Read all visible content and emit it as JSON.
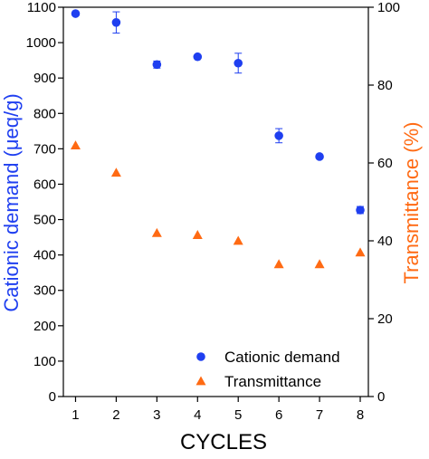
{
  "chart_data": {
    "type": "scatter",
    "title": "",
    "xlabel": "CYCLES",
    "ylabel_left": "Cationic demand (μeq/g)",
    "ylabel_right": "Transmittance (%)",
    "x": [
      1,
      2,
      3,
      4,
      5,
      6,
      7,
      8
    ],
    "xlim": [
      0.7,
      8.2
    ],
    "xticks": [
      "1",
      "2",
      "3",
      "4",
      "5",
      "6",
      "7",
      "8"
    ],
    "ylim_left": [
      0,
      1100
    ],
    "yticks_left": [
      "0",
      "100",
      "200",
      "300",
      "400",
      "500",
      "600",
      "700",
      "800",
      "900",
      "1000",
      "1100"
    ],
    "ylim_right": [
      0,
      100
    ],
    "yticks_right": [
      "0",
      "20",
      "40",
      "60",
      "80",
      "100"
    ],
    "grid": false,
    "legend_position": "bottom-right",
    "series": [
      {
        "name": "Cationic demand",
        "axis": "left",
        "marker": "circle",
        "color": "#1f3ff0",
        "values": [
          1082,
          1057,
          938,
          960,
          942,
          737,
          678,
          527
        ],
        "errors": [
          0,
          30,
          10,
          0,
          28,
          20,
          0,
          10
        ]
      },
      {
        "name": "Transmittance",
        "axis": "right",
        "marker": "triangle",
        "color": "#ff6a13",
        "values": [
          64.5,
          57.5,
          42.0,
          41.5,
          40.0,
          34.0,
          34.0,
          37.0
        ],
        "errors": [
          0,
          0,
          0,
          0,
          0,
          0,
          0,
          0
        ]
      }
    ]
  }
}
